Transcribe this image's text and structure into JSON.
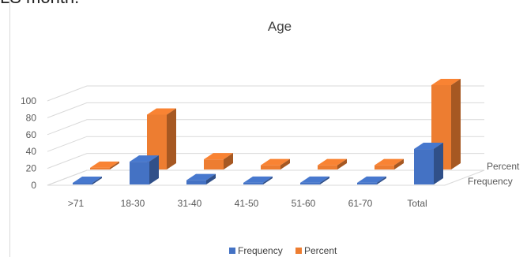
{
  "header_fragment": "LS month.",
  "chart_data": {
    "type": "bar",
    "title": "Age",
    "categories": [
      ">71",
      "18-30",
      "31-40",
      "41-50",
      "51-60",
      "61-70",
      "Total"
    ],
    "series": [
      {
        "name": "Frequency",
        "values": [
          1,
          27,
          5,
          2,
          2,
          2,
          42
        ],
        "color": "#4472c4"
      },
      {
        "name": "Percent",
        "values": [
          2,
          65,
          12,
          5,
          5,
          5,
          100
        ],
        "color": "#ed7d31"
      }
    ],
    "yticks": [
      0,
      20,
      40,
      60,
      80,
      100
    ],
    "ylim": [
      0,
      100
    ],
    "depth_labels": [
      "Percent",
      "Frequency"
    ],
    "legend": [
      "Frequency",
      "Percent"
    ],
    "legend_position": "bottom",
    "grid": true
  }
}
